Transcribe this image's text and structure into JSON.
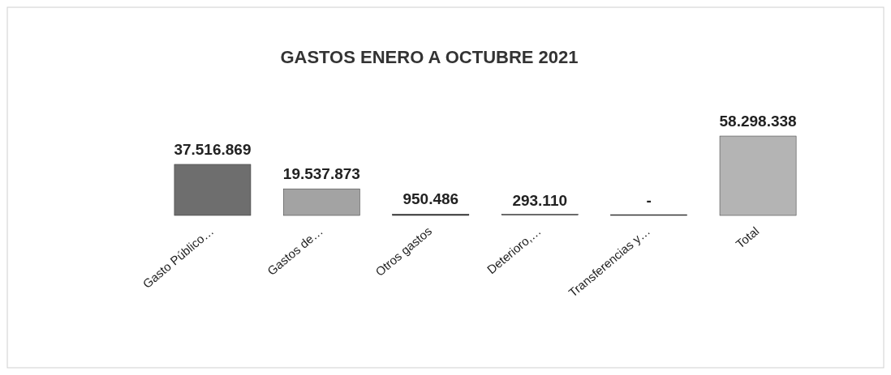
{
  "chart_data": {
    "type": "bar",
    "title": "GASTOS ENERO A OCTUBRE 2021",
    "categories": [
      "Gasto Público…",
      "Gastos de…",
      "Otros gastos",
      "Deterioro,…",
      "Transferencias y…",
      "Total"
    ],
    "values": [
      37516869,
      19537873,
      950486,
      293110,
      0,
      58298338
    ],
    "colors": [
      "#6e6e6e",
      "#a3a3a3",
      "#3c3c3c",
      "#4a4a4a",
      "#3a3a3a",
      "#b4b4b4"
    ],
    "value_labels": [
      "37.516.869",
      "19.537.873",
      "950.486",
      "293.110",
      "-",
      "58.298.338"
    ]
  }
}
